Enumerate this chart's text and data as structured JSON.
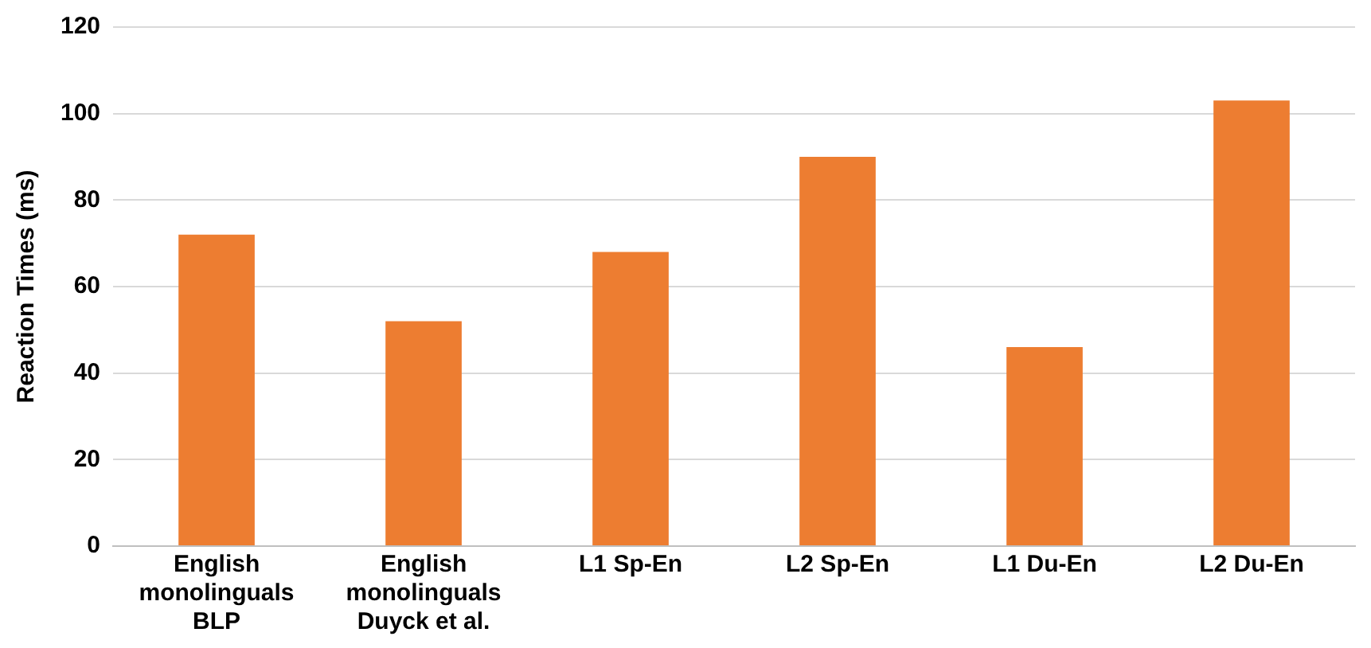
{
  "chart_data": {
    "type": "bar",
    "ylabel": "Reaction Times (ms)",
    "categories": [
      "English monolinguals BLP",
      "English monolinguals Duyck et al.",
      "L1 Sp-En",
      "L2 Sp-En",
      "L1 Du-En",
      "L2 Du-En"
    ],
    "values": [
      72,
      52,
      68,
      90,
      46,
      103
    ],
    "color": "#ed7d31",
    "ylim": [
      0,
      120
    ],
    "yticks": [
      0,
      20,
      40,
      60,
      80,
      100,
      120
    ],
    "grid": "y",
    "legend": false
  }
}
